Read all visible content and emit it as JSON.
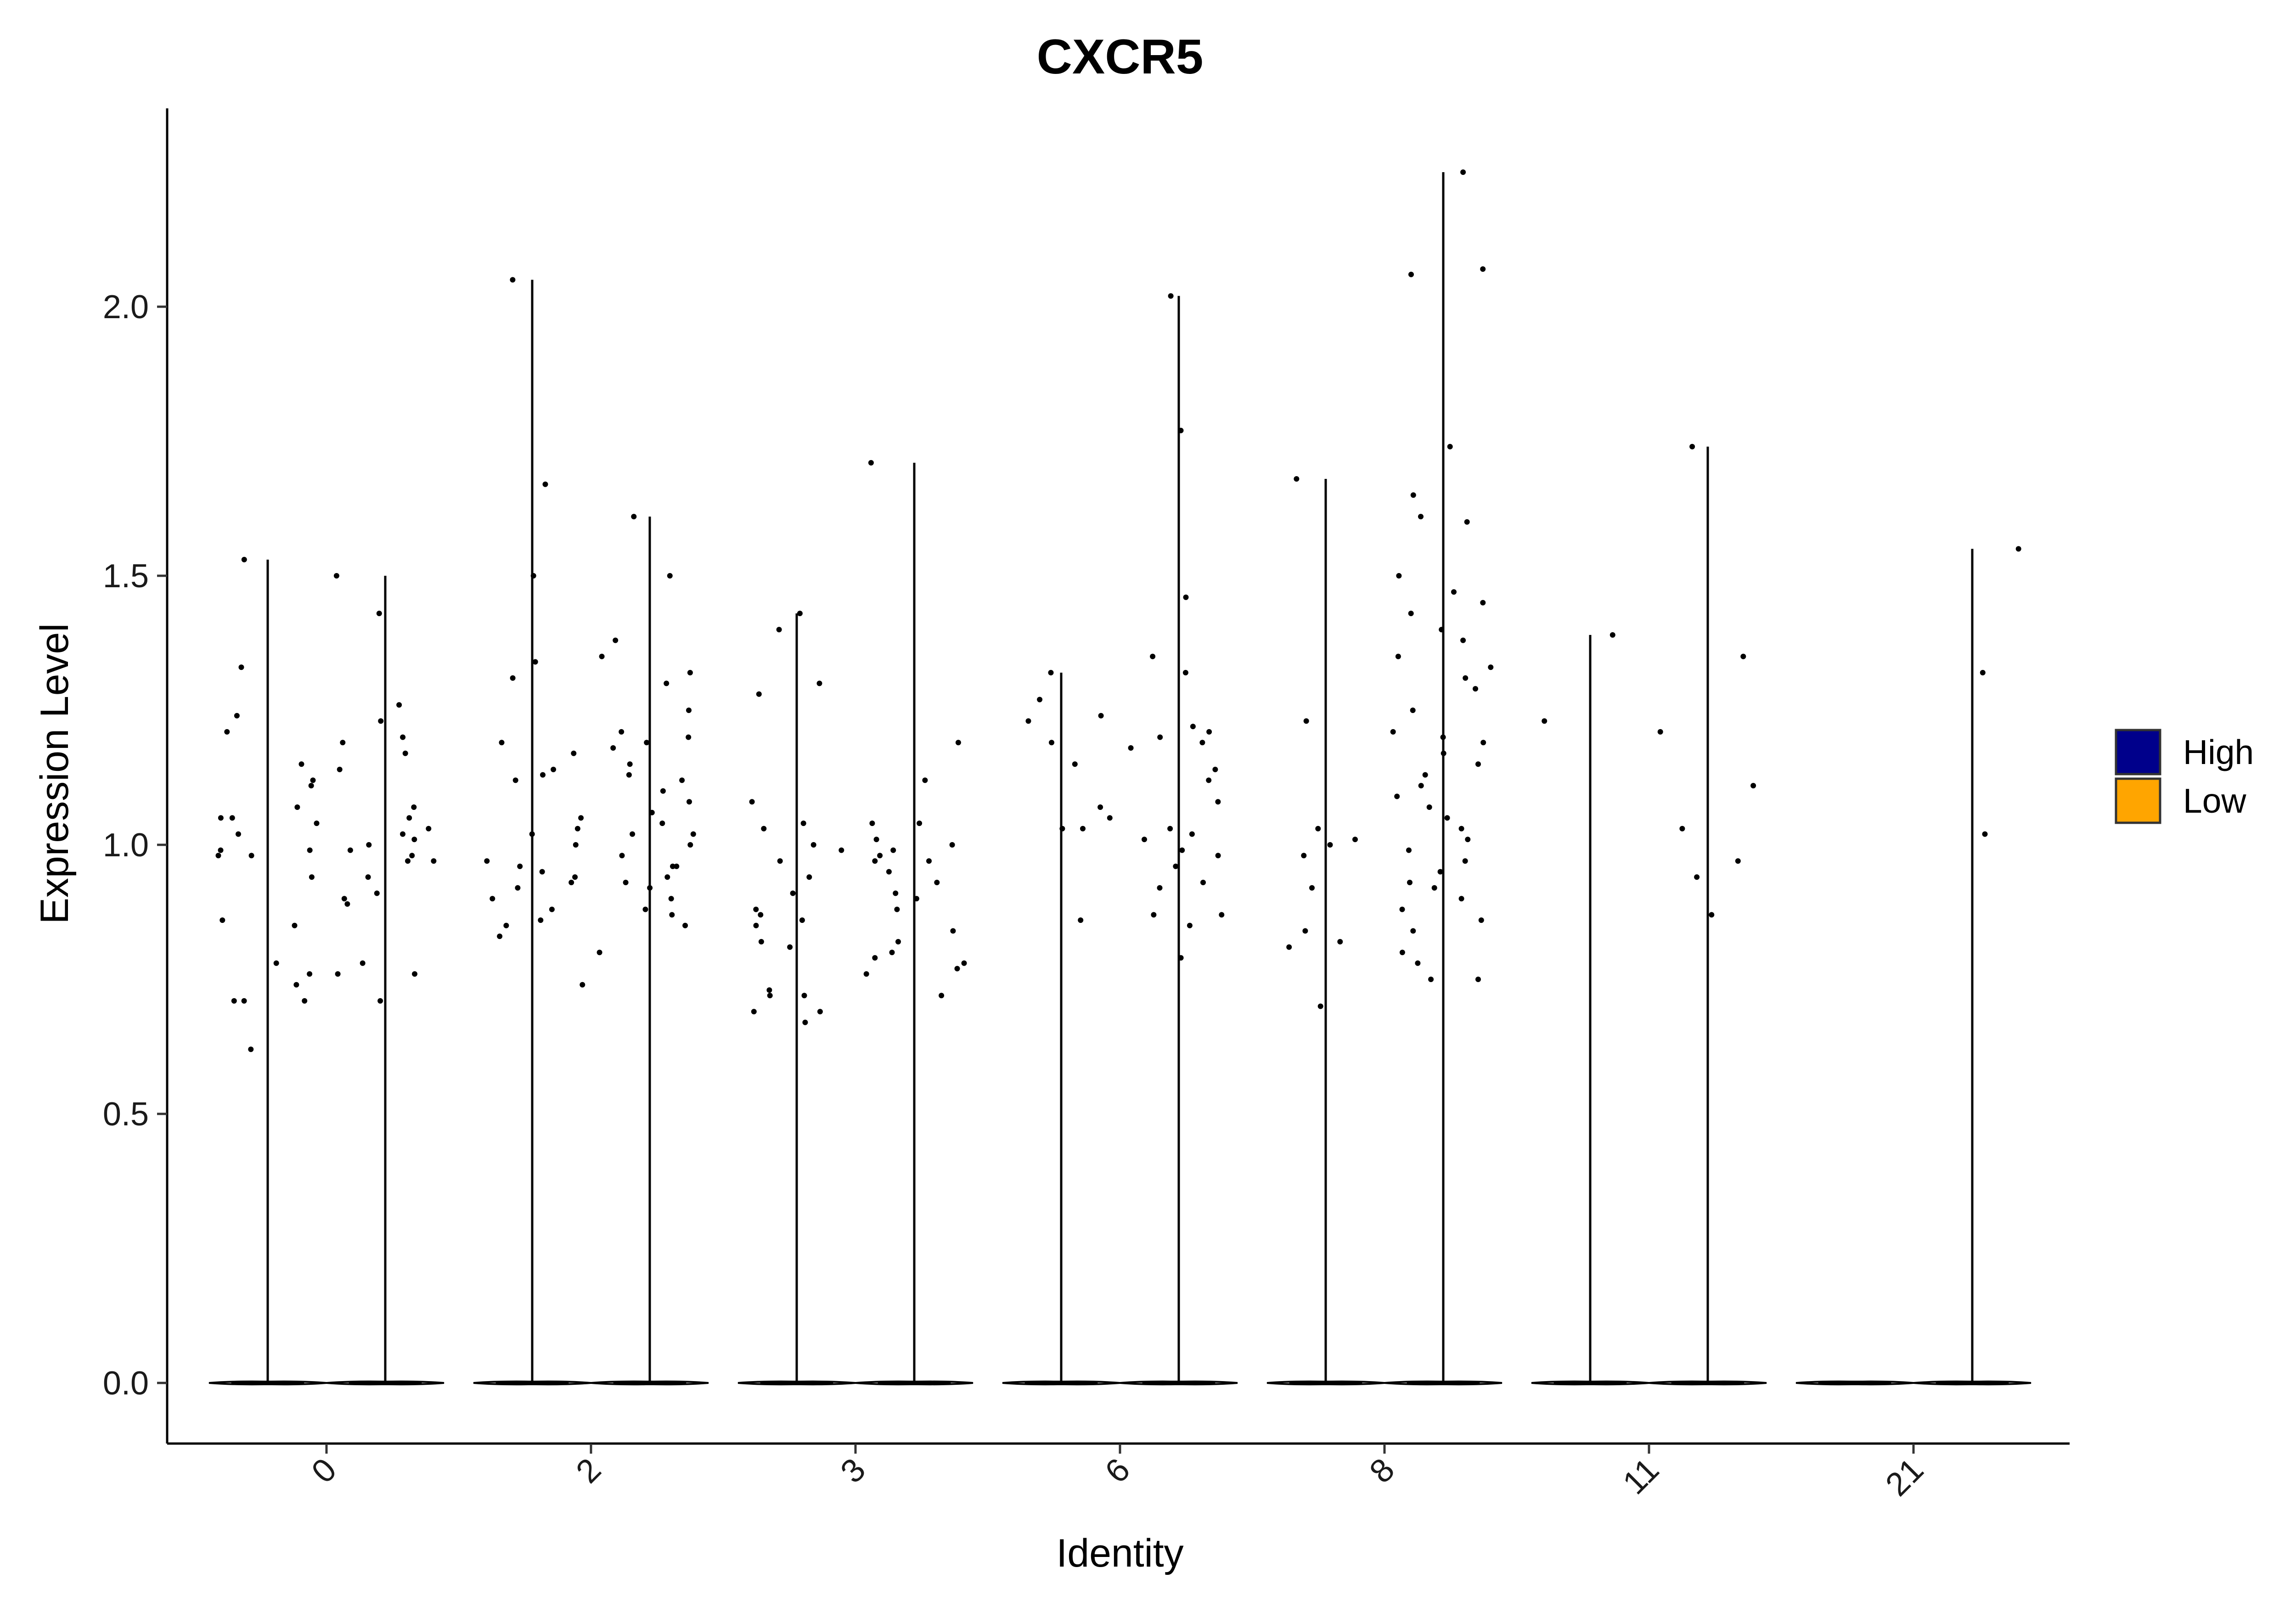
{
  "chart_data": {
    "type": "violin",
    "title": "CXCR5",
    "xlabel": "Identity",
    "ylabel": "Expression Level",
    "ylim": [
      -0.11,
      2.37
    ],
    "yticks": [
      0.0,
      0.5,
      1.0,
      1.5,
      2.0
    ],
    "ytick_labels": [
      "0.0",
      "0.5",
      "1.0",
      "1.5",
      "2.0"
    ],
    "categories": [
      "0",
      "2",
      "3",
      "6",
      "8",
      "11",
      "21"
    ],
    "legend_position": "right",
    "series": [
      {
        "name": "High",
        "color": "#00008B",
        "max_values": [
          1.53,
          2.05,
          1.43,
          1.32,
          1.68,
          1.39,
          0.0
        ],
        "points": [
          [
            1.21,
            1.15,
            1.12,
            1.05,
            0.98,
            0.86,
            0.85,
            0.78,
            0.76,
            0.74,
            0.62,
            1.24,
            1.53,
            1.07,
            1.04,
            1.05,
            0.98,
            0.99,
            0.71,
            0.71,
            0.71,
            1.02,
            0.99,
            1.33,
            1.11,
            0.94
          ],
          [
            2.05,
            1.67,
            1.5,
            1.19,
            1.17,
            1.12,
            1.05,
            1.03,
            1.0,
            0.97,
            0.94,
            0.93,
            0.92,
            0.9,
            0.88,
            0.86,
            0.85,
            0.83,
            0.74,
            1.31,
            1.34,
            1.14,
            1.13,
            1.02,
            0.96,
            0.95
          ],
          [
            1.4,
            1.3,
            1.28,
            1.43,
            1.08,
            1.04,
            1.03,
            1.0,
            0.99,
            0.97,
            0.94,
            0.91,
            0.88,
            0.87,
            0.86,
            0.85,
            0.82,
            0.81,
            0.73,
            0.72,
            0.72,
            0.69,
            0.69,
            0.67
          ],
          [
            1.32,
            1.27,
            1.24,
            1.23,
            1.19,
            1.15,
            1.07,
            1.05,
            1.03,
            1.03,
            0.86
          ],
          [
            1.68,
            1.23,
            1.03,
            1.01,
            1.0,
            0.98,
            0.92,
            0.84,
            0.82,
            0.81,
            0.7
          ],
          [
            1.39,
            1.23
          ],
          []
        ]
      },
      {
        "name": "Low",
        "color": "#FFA500",
        "max_values": [
          1.5,
          1.61,
          1.71,
          2.02,
          2.25,
          1.74,
          1.55
        ],
        "points": [
          [
            1.5,
            1.43,
            1.26,
            1.23,
            1.2,
            1.19,
            1.17,
            1.14,
            1.07,
            1.05,
            1.03,
            1.02,
            1.0,
            0.99,
            0.98,
            0.97,
            0.94,
            0.91,
            0.9,
            0.89,
            0.78,
            0.76,
            0.76,
            0.71,
            1.01,
            0.97
          ],
          [
            1.61,
            1.5,
            1.38,
            1.35,
            1.32,
            1.3,
            1.25,
            1.21,
            1.2,
            1.19,
            1.15,
            1.13,
            1.12,
            1.1,
            1.08,
            1.06,
            1.04,
            1.02,
            1.0,
            0.98,
            0.96,
            0.94,
            0.92,
            0.9,
            0.88,
            0.87,
            0.85,
            0.8,
            1.18,
            1.02,
            0.93,
            0.96
          ],
          [
            1.71,
            1.19,
            1.12,
            1.04,
            1.04,
            1.01,
            0.99,
            0.98,
            0.97,
            0.95,
            0.93,
            0.91,
            0.9,
            0.88,
            0.84,
            0.82,
            0.8,
            0.79,
            0.78,
            0.77,
            0.76,
            0.72,
            1.0,
            0.97
          ],
          [
            2.02,
            1.77,
            1.46,
            1.35,
            1.32,
            1.22,
            1.21,
            1.2,
            1.19,
            1.18,
            1.14,
            1.12,
            1.08,
            1.03,
            1.02,
            1.01,
            0.99,
            0.98,
            0.96,
            0.93,
            0.92,
            0.87,
            0.87,
            0.85,
            0.79
          ],
          [
            2.25,
            2.07,
            2.06,
            1.74,
            1.65,
            1.61,
            1.6,
            1.5,
            1.47,
            1.45,
            1.43,
            1.4,
            1.38,
            1.35,
            1.33,
            1.31,
            1.29,
            1.25,
            1.21,
            1.2,
            1.19,
            1.17,
            1.15,
            1.13,
            1.11,
            1.09,
            1.07,
            1.05,
            1.03,
            1.01,
            0.99,
            0.97,
            0.95,
            0.93,
            0.92,
            0.9,
            0.88,
            0.86,
            0.84,
            0.8,
            0.78,
            0.75,
            0.75
          ],
          [
            1.74,
            1.35,
            1.21,
            1.11,
            1.03,
            0.97,
            0.94,
            0.87
          ],
          [
            1.55,
            1.32,
            1.02
          ]
        ]
      }
    ]
  }
}
